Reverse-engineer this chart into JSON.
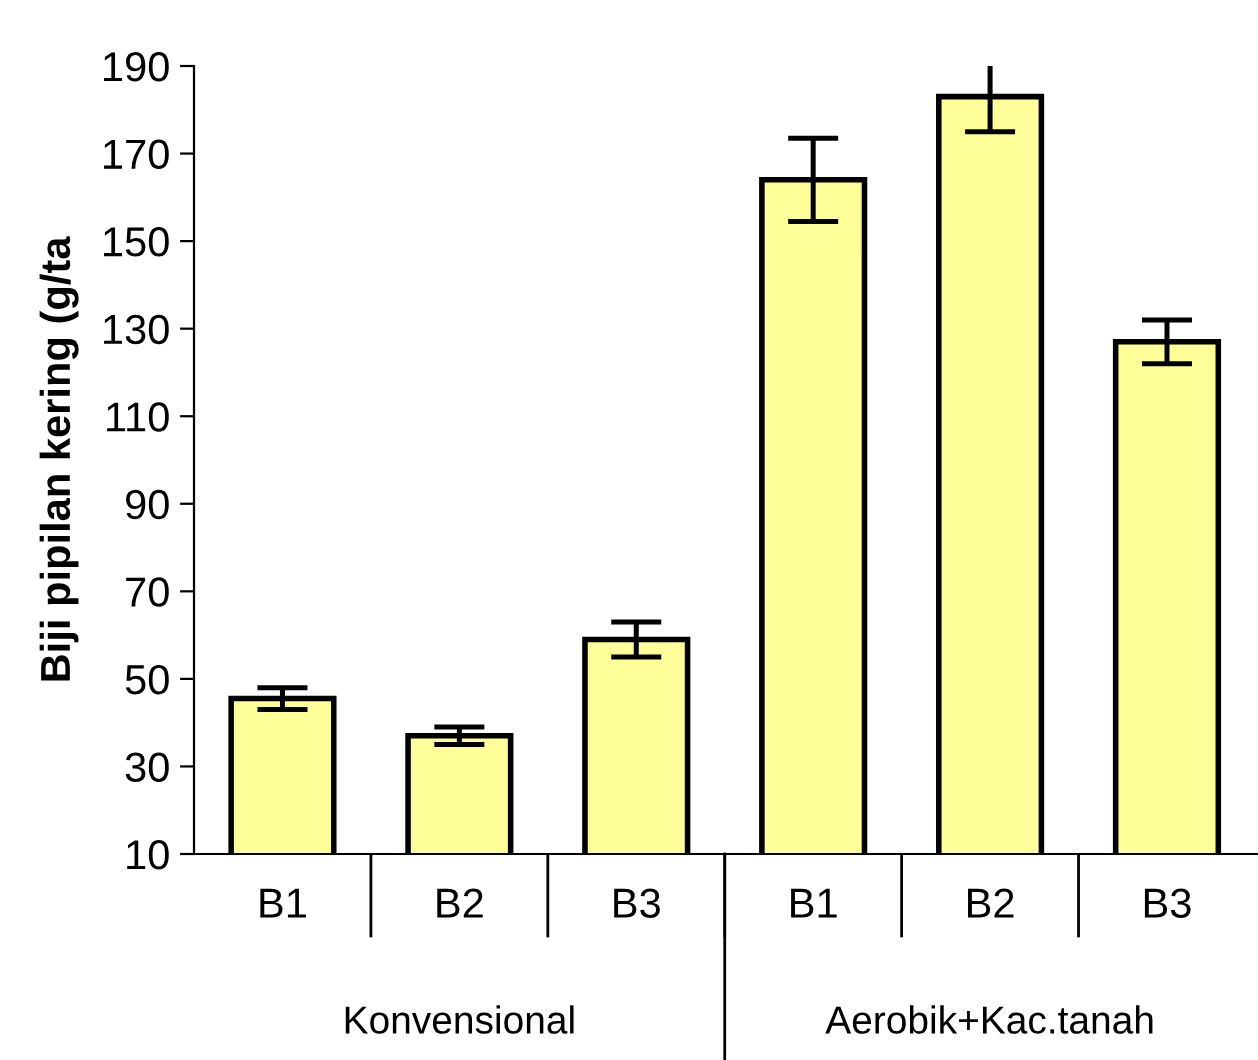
{
  "chart_data": {
    "type": "bar",
    "ylabel": "Biji pipilan kering (g/ta",
    "categories": [
      "B1",
      "B2",
      "B3",
      "B1",
      "B2",
      "B3"
    ],
    "values": [
      45.5,
      37,
      59,
      164,
      183,
      127
    ],
    "errors": [
      2.5,
      2,
      4,
      9.5,
      8,
      5
    ],
    "color": "#ffff99",
    "ylim": [
      10,
      190
    ],
    "yticks": [
      10,
      30,
      50,
      70,
      90,
      110,
      130,
      150,
      170,
      190
    ],
    "annotations": [
      "Konvensional",
      "Aerobik+Kac.tanah"
    ],
    "grid": false,
    "legend": false
  }
}
